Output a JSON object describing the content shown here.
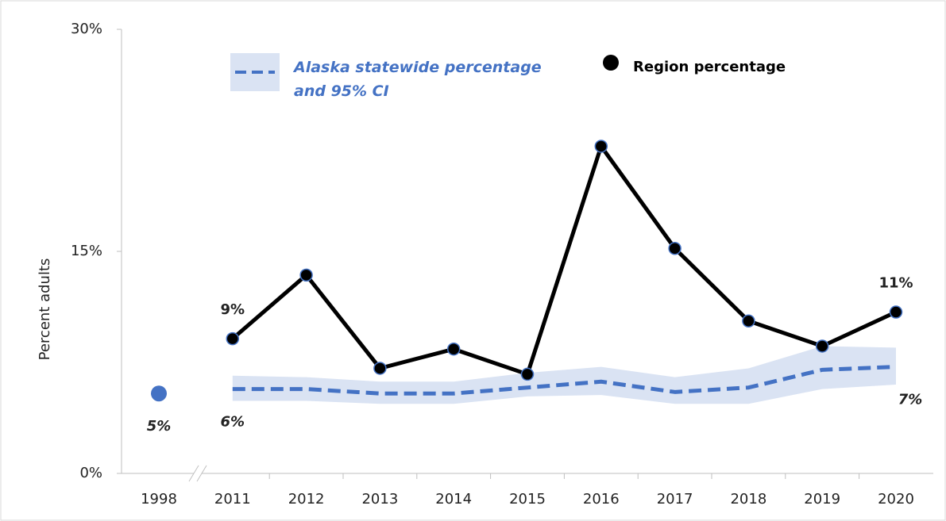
{
  "chart_data": {
    "type": "line",
    "categories": [
      "1998",
      "2011",
      "2012",
      "2013",
      "2014",
      "2015",
      "2016",
      "2017",
      "2018",
      "2019",
      "2020"
    ],
    "y_label": "Percent adults",
    "ylim": [
      0,
      30
    ],
    "yticks": [
      {
        "value": 0,
        "label": "0%"
      },
      {
        "value": 15,
        "label": "15%"
      },
      {
        "value": 30,
        "label": "30%"
      }
    ],
    "grid": false,
    "series": [
      {
        "name": "Region percentage",
        "color": "#000000",
        "values": [
          null,
          9.1,
          13.4,
          7.1,
          8.4,
          6.7,
          22.1,
          15.2,
          10.3,
          8.6,
          10.9
        ],
        "value_labels": [
          null,
          "9%",
          null,
          null,
          null,
          null,
          null,
          null,
          null,
          null,
          "11%"
        ]
      },
      {
        "name": "Alaska statewide percentage and 95% CI",
        "color": "#4472c4",
        "band_color": "#dae3f3",
        "values": [
          5.4,
          5.7,
          5.7,
          5.4,
          5.4,
          5.8,
          6.2,
          5.5,
          5.8,
          7.0,
          7.2
        ],
        "ci_low": [
          null,
          4.9,
          4.9,
          4.7,
          4.7,
          5.2,
          5.3,
          4.7,
          4.7,
          5.7,
          6.0
        ],
        "ci_high": [
          null,
          6.6,
          6.5,
          6.2,
          6.2,
          6.8,
          7.2,
          6.5,
          7.1,
          8.6,
          8.5
        ],
        "value_labels": [
          "5%",
          "6%",
          null,
          null,
          null,
          null,
          null,
          null,
          null,
          null,
          "7%"
        ]
      }
    ]
  }
}
